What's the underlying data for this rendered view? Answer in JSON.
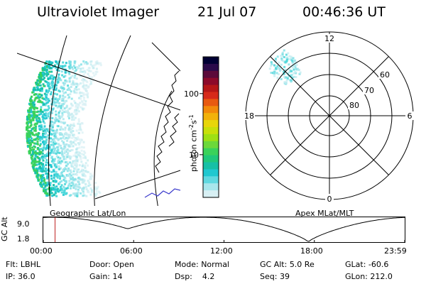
{
  "header": {
    "title": "Ultraviolet Imager",
    "date": "21 Jul 07",
    "time": "00:46:36 UT"
  },
  "colorbar": {
    "label": "photon cm",
    "label_sup1": "-2",
    "label_mid": "s",
    "label_sup2": "-1",
    "ticks": [
      {
        "value": 100,
        "label": "100"
      },
      {
        "value": 10,
        "label": "10"
      }
    ],
    "scale": "log",
    "range": [
      2,
      400
    ],
    "colors": [
      "#000033",
      "#2a0a4a",
      "#5c0a3a",
      "#8c0a2a",
      "#b51717",
      "#d62a1a",
      "#e85a10",
      "#f28a0a",
      "#f2b20a",
      "#e8d60a",
      "#c8e00a",
      "#9ee014",
      "#6cd83a",
      "#3ad25a",
      "#20c87a",
      "#16c0a6",
      "#20c8d0",
      "#60d8e0",
      "#a8e6ec",
      "#d8f0f4"
    ]
  },
  "polar_plot": {
    "label": "Apex MLat/MLT",
    "mlt_labels": {
      "top": "12",
      "bottom": "0",
      "left": "18",
      "right": "6"
    },
    "lat_labels": [
      "60",
      "70",
      "80"
    ]
  },
  "geo_plot": {
    "label": "Geographic Lat/Lon"
  },
  "orbit_plot": {
    "ylabel": "GC Alt",
    "yticks": [
      "9.0",
      "1.8"
    ],
    "xticks": [
      "00:00",
      "06:00",
      "12:00",
      "18:00",
      "23:59"
    ],
    "current_time_hours": 0.78
  },
  "footer": {
    "row1": [
      {
        "key": "Flt:",
        "value": "LBHL"
      },
      {
        "key": "Door:",
        "value": "Open"
      },
      {
        "key": "Mode:",
        "value": "Normal"
      },
      {
        "key": "GC Alt:",
        "value": "5.0 Re"
      },
      {
        "key": "GLat:",
        "value": "-60.6"
      }
    ],
    "row2": [
      {
        "key": "IP:",
        "value": "36.0"
      },
      {
        "key": "Gain:",
        "value": "14"
      },
      {
        "key": "Dsp:",
        "value": "4.2"
      },
      {
        "key": "Seq:",
        "value": "39"
      },
      {
        "key": "GLon:",
        "value": "212.0"
      }
    ]
  }
}
